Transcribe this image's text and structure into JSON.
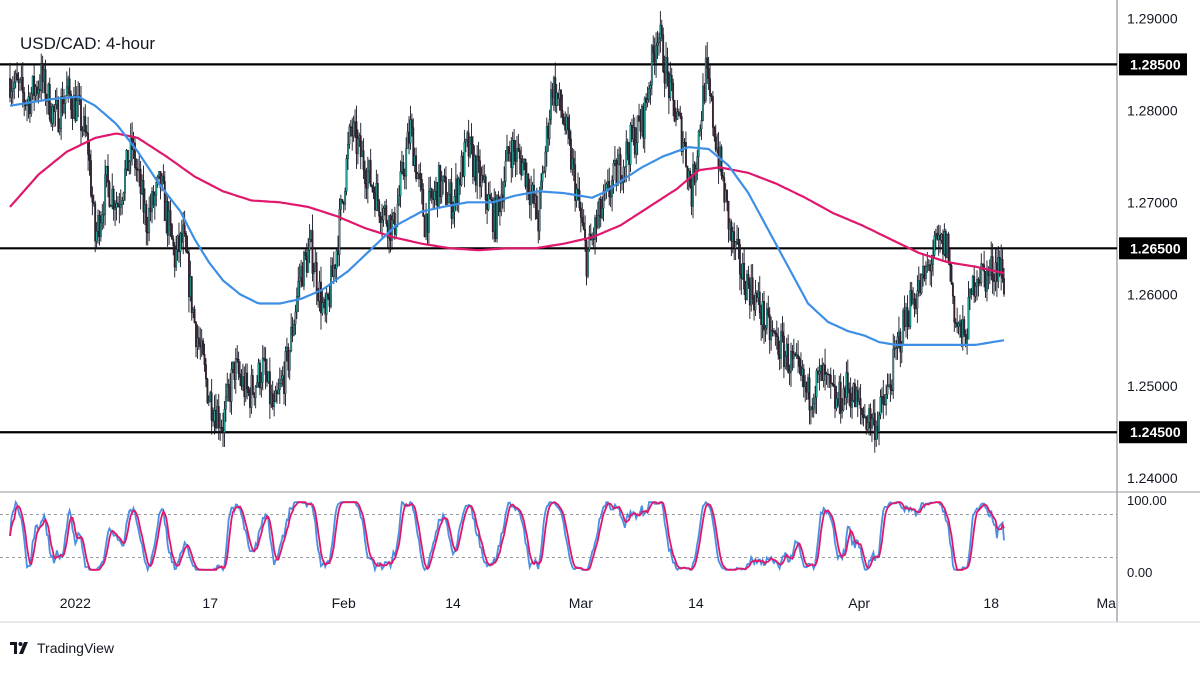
{
  "chart_data": {
    "type": "candlestick",
    "title": "USD/CAD: 4-hour",
    "y_range": [
      1.2385,
      1.292
    ],
    "y_ticks": [
      "1.29000",
      "1.28000",
      "1.27000",
      "1.26000",
      "1.25000",
      "1.24000"
    ],
    "y_tick_values": [
      1.29,
      1.28,
      1.27,
      1.26,
      1.25,
      1.24
    ],
    "x_ticks": [
      "2022",
      "17",
      "Feb",
      "14",
      "Mar",
      "14",
      "Apr",
      "18",
      "Ma"
    ],
    "horizontal_levels": [
      {
        "label": "1.28500",
        "value": 1.285
      },
      {
        "label": "1.26500",
        "value": 1.265
      },
      {
        "label": "1.24500",
        "value": 1.245
      }
    ],
    "price_path": [
      [
        0,
        1.2835
      ],
      [
        12,
        1.281
      ],
      [
        22,
        1.2835
      ],
      [
        32,
        1.279
      ],
      [
        40,
        1.282
      ],
      [
        48,
        1.28
      ],
      [
        55,
        1.276
      ],
      [
        60,
        1.266
      ],
      [
        68,
        1.272
      ],
      [
        76,
        1.27
      ],
      [
        86,
        1.276
      ],
      [
        96,
        1.268
      ],
      [
        106,
        1.272
      ],
      [
        116,
        1.264
      ],
      [
        122,
        1.266
      ],
      [
        130,
        1.257
      ],
      [
        140,
        1.249
      ],
      [
        150,
        1.246
      ],
      [
        158,
        1.252
      ],
      [
        168,
        1.249
      ],
      [
        178,
        1.252
      ],
      [
        186,
        1.247
      ],
      [
        196,
        1.253
      ],
      [
        204,
        1.262
      ],
      [
        212,
        1.265
      ],
      [
        222,
        1.257
      ],
      [
        230,
        1.265
      ],
      [
        240,
        1.278
      ],
      [
        250,
        1.274
      ],
      [
        260,
        1.27
      ],
      [
        270,
        1.267
      ],
      [
        282,
        1.278
      ],
      [
        292,
        1.268
      ],
      [
        302,
        1.272
      ],
      [
        312,
        1.27
      ],
      [
        322,
        1.276
      ],
      [
        332,
        1.272
      ],
      [
        342,
        1.268
      ],
      [
        352,
        1.276
      ],
      [
        362,
        1.274
      ],
      [
        372,
        1.268
      ],
      [
        382,
        1.283
      ],
      [
        390,
        1.279
      ],
      [
        398,
        1.272
      ],
      [
        406,
        1.264
      ],
      [
        414,
        1.268
      ],
      [
        424,
        1.272
      ],
      [
        436,
        1.276
      ],
      [
        446,
        1.279
      ],
      [
        456,
        1.289
      ],
      [
        466,
        1.281
      ],
      [
        474,
        1.277
      ],
      [
        480,
        1.271
      ],
      [
        490,
        1.284
      ],
      [
        498,
        1.276
      ],
      [
        508,
        1.266
      ],
      [
        516,
        1.262
      ],
      [
        524,
        1.26
      ],
      [
        534,
        1.256
      ],
      [
        544,
        1.254
      ],
      [
        552,
        1.252
      ],
      [
        562,
        1.249
      ],
      [
        572,
        1.251
      ],
      [
        582,
        1.248
      ],
      [
        590,
        1.25
      ],
      [
        600,
        1.247
      ],
      [
        610,
        1.246
      ],
      [
        618,
        1.249
      ],
      [
        626,
        1.255
      ],
      [
        634,
        1.259
      ],
      [
        642,
        1.261
      ],
      [
        652,
        1.265
      ],
      [
        660,
        1.2655
      ],
      [
        666,
        1.257
      ],
      [
        672,
        1.255
      ],
      [
        680,
        1.2625
      ],
      [
        688,
        1.262
      ],
      [
        696,
        1.2635
      ],
      [
        700,
        1.2615
      ]
    ],
    "ma_fast_100": [
      [
        0,
        1.2805
      ],
      [
        28,
        1.2812
      ],
      [
        48,
        1.2815
      ],
      [
        60,
        1.2805
      ],
      [
        75,
        1.2785
      ],
      [
        90,
        1.2755
      ],
      [
        105,
        1.272
      ],
      [
        120,
        1.269
      ],
      [
        130,
        1.266
      ],
      [
        140,
        1.2635
      ],
      [
        150,
        1.2615
      ],
      [
        162,
        1.26
      ],
      [
        175,
        1.259
      ],
      [
        190,
        1.259
      ],
      [
        205,
        1.2595
      ],
      [
        220,
        1.2605
      ],
      [
        238,
        1.2625
      ],
      [
        255,
        1.265
      ],
      [
        272,
        1.2675
      ],
      [
        290,
        1.269
      ],
      [
        305,
        1.2695
      ],
      [
        322,
        1.27
      ],
      [
        340,
        1.27
      ],
      [
        355,
        1.2707
      ],
      [
        372,
        1.2712
      ],
      [
        390,
        1.271
      ],
      [
        410,
        1.2705
      ],
      [
        420,
        1.2712
      ],
      [
        432,
        1.2725
      ],
      [
        445,
        1.2738
      ],
      [
        460,
        1.275
      ],
      [
        478,
        1.276
      ],
      [
        492,
        1.2758
      ],
      [
        506,
        1.274
      ],
      [
        520,
        1.271
      ],
      [
        534,
        1.267
      ],
      [
        548,
        1.263
      ],
      [
        562,
        1.259
      ],
      [
        576,
        1.257
      ],
      [
        590,
        1.256
      ],
      [
        602,
        1.2555
      ],
      [
        612,
        1.2548
      ],
      [
        624,
        1.2545
      ],
      [
        640,
        1.2545
      ],
      [
        660,
        1.2545
      ],
      [
        680,
        1.2545
      ],
      [
        700,
        1.255
      ]
    ],
    "ma_slow_200": [
      [
        0,
        1.2695
      ],
      [
        20,
        1.273
      ],
      [
        40,
        1.2755
      ],
      [
        60,
        1.277
      ],
      [
        75,
        1.2775
      ],
      [
        90,
        1.277
      ],
      [
        110,
        1.275
      ],
      [
        130,
        1.2728
      ],
      [
        150,
        1.2712
      ],
      [
        170,
        1.2702
      ],
      [
        190,
        1.27
      ],
      [
        210,
        1.2695
      ],
      [
        230,
        1.2685
      ],
      [
        250,
        1.2672
      ],
      [
        270,
        1.2662
      ],
      [
        290,
        1.2655
      ],
      [
        310,
        1.265
      ],
      [
        330,
        1.2648
      ],
      [
        350,
        1.265
      ],
      [
        370,
        1.265
      ],
      [
        390,
        1.2655
      ],
      [
        410,
        1.2662
      ],
      [
        430,
        1.2675
      ],
      [
        450,
        1.2695
      ],
      [
        470,
        1.2715
      ],
      [
        485,
        1.2735
      ],
      [
        500,
        1.2738
      ],
      [
        520,
        1.2732
      ],
      [
        540,
        1.272
      ],
      [
        560,
        1.2705
      ],
      [
        580,
        1.2688
      ],
      [
        600,
        1.2675
      ],
      [
        620,
        1.266
      ],
      [
        640,
        1.2645
      ],
      [
        660,
        1.2635
      ],
      [
        680,
        1.263
      ],
      [
        700,
        1.2623
      ]
    ],
    "oscillator": {
      "y_ticks": [
        "100.00",
        "0.00"
      ],
      "y_tick_values": [
        100,
        0
      ],
      "reference_levels": [
        80,
        20
      ]
    }
  }
}
